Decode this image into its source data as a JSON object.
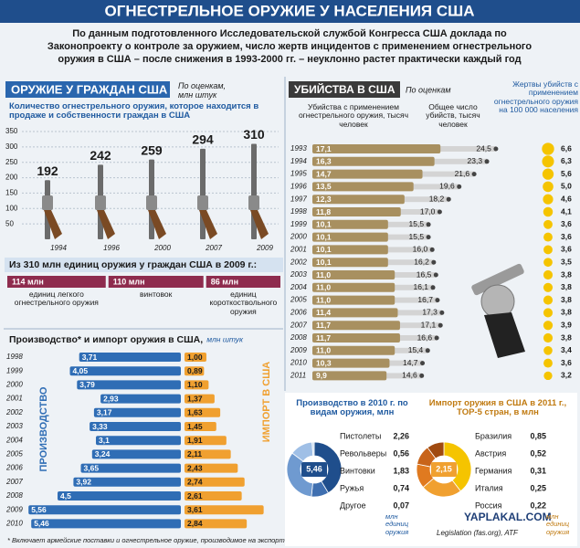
{
  "title": "ОГНЕСТРЕЛЬНОЕ ОРУЖИЕ У НАСЕЛЕНИЯ США",
  "intro": [
    "По данным подготовленного Исследовательской службой Конгресса США доклада по",
    "Законопроекту о контроле за оружием, число жертв инцидентов с применением огнестрельного",
    "оружия в США – после снижения в 1993-2000 гг. – неуклонно растет практически каждый год"
  ],
  "footnote": "* Включает армейские поставки и огнестрельное оружие, производимое на экспорт",
  "source": "Legislation (fas.org), ATF",
  "watermark": "YAPLAKAL.COM",
  "chart_data": [
    {
      "type": "bar",
      "title": "ОРУЖИЕ У ГРАЖДАН США",
      "note": "По оценкам, млн штук",
      "subtitle": "Количество огнестрельного оружия, которое находится в продаже и собственности граждан в США",
      "categories": [
        "1994",
        "1996",
        "2000",
        "2007",
        "2009"
      ],
      "values": [
        192,
        242,
        259,
        294,
        310
      ],
      "ylim": [
        0,
        350
      ],
      "yticks": [
        50,
        100,
        150,
        200,
        250,
        300,
        350
      ],
      "grid": true,
      "color": "#6b6b6b"
    },
    {
      "type": "segment",
      "title": "Из 310 млн единиц оружия у граждан США в 2009 г.:",
      "categories": [
        "единиц легкого огнестрельного оружия",
        "винтовок",
        "единиц короткоствольного оружия"
      ],
      "values": [
        114,
        110,
        86
      ],
      "value_labels": [
        "114 млн",
        "110 млн",
        "86 млн"
      ],
      "color": "#8e2c4e"
    },
    {
      "type": "paired-bar",
      "title": "Производство* и импорт оружия в США,",
      "unit": "млн штук",
      "categories": [
        "1998",
        "1999",
        "2000",
        "2001",
        "2002",
        "2003",
        "2004",
        "2005",
        "2006",
        "2007",
        "2008",
        "2009",
        "2010"
      ],
      "series": [
        {
          "name": "ПРОИЗВОДСТВО",
          "color": "#2f6db5",
          "values": [
            3.71,
            4.05,
            3.79,
            2.93,
            3.17,
            3.33,
            3.1,
            3.24,
            3.65,
            3.92,
            4.5,
            5.56,
            5.46
          ],
          "value_labels": [
            "3,71",
            "4,05",
            "3,79",
            "2,93",
            "3,17",
            "3,33",
            "3,1",
            "3,24",
            "3,65",
            "3,92",
            "4,5",
            "5,56",
            "5,46"
          ]
        },
        {
          "name": "ИМПОРТ В США",
          "color": "#f0a030",
          "values": [
            1.0,
            0.89,
            1.1,
            1.37,
            1.63,
            1.45,
            1.91,
            2.11,
            2.43,
            2.74,
            2.61,
            3.61,
            2.84
          ],
          "value_labels": [
            "1,00",
            "0,89",
            "1,10",
            "1,37",
            "1,63",
            "1,45",
            "1,91",
            "2,11",
            "2,43",
            "2,74",
            "2,61",
            "3,61",
            "2,84"
          ]
        }
      ]
    },
    {
      "type": "bullet-rows",
      "title": "УБИЙСТВА В США",
      "note": "По оценкам",
      "categories": [
        "1993",
        "1994",
        "1995",
        "1996",
        "1997",
        "1998",
        "1999",
        "2000",
        "2001",
        "2002",
        "2003",
        "2004",
        "2005",
        "2006",
        "2007",
        "2008",
        "2009",
        "2010",
        "2011"
      ],
      "series": [
        {
          "name": "Убийства с применением огнестрельного оружия, тысяч человек",
          "color": "#a89060",
          "values": [
            17.1,
            16.3,
            14.7,
            13.5,
            12.3,
            11.8,
            10.1,
            10.1,
            10.1,
            10.1,
            11.0,
            11.0,
            11.0,
            11.4,
            11.7,
            11.7,
            11.0,
            10.3,
            9.9
          ],
          "value_labels": [
            "17,1",
            "16,3",
            "14,7",
            "13,5",
            "12,3",
            "11,8",
            "10,1",
            "10,1",
            "10,1",
            "10,1",
            "11,0",
            "11,0",
            "11,0",
            "11,4",
            "11,7",
            "11,7",
            "11,0",
            "10,3",
            "9,9"
          ]
        },
        {
          "name": "Общее число убийств, тысяч человек",
          "color": "#d4d4d4",
          "values": [
            24.5,
            23.3,
            21.6,
            19.6,
            18.2,
            17.0,
            15.5,
            15.5,
            16.0,
            16.2,
            16.5,
            16.1,
            16.7,
            17.3,
            17.1,
            16.6,
            15.4,
            14.7,
            14.6
          ],
          "value_labels": [
            "24,5",
            "23,3",
            "21,6",
            "19,6",
            "18,2",
            "17,0",
            "15,5",
            "15,5",
            "16,0",
            "16,2",
            "16,5",
            "16,1",
            "16,7",
            "17,3",
            "17,1",
            "16,6",
            "15,4",
            "14,7",
            "14,6"
          ]
        },
        {
          "name": "Жертвы убийств с применением огнестрельного оружия на 100 000 населения",
          "color": "#f5c400",
          "values": [
            6.6,
            6.3,
            5.6,
            5.0,
            4.6,
            4.1,
            3.6,
            3.6,
            3.6,
            3.5,
            3.8,
            3.8,
            3.8,
            3.8,
            3.9,
            3.8,
            3.4,
            3.6,
            3.2
          ],
          "value_labels": [
            "6,6",
            "6,3",
            "5,6",
            "5,0",
            "4,6",
            "4,1",
            "3,6",
            "3,6",
            "3,6",
            "3,5",
            "3,8",
            "3,8",
            "3,8",
            "3,8",
            "3,9",
            "3,8",
            "3,4",
            "3,6",
            "3,2"
          ]
        }
      ]
    },
    {
      "type": "donut",
      "title": "Производство в 2010 г. по видам оружия, млн",
      "categories": [
        "Пистолеты",
        "Револьверы",
        "Винтовки",
        "Ружья",
        "Другое"
      ],
      "values": [
        2.26,
        0.56,
        1.83,
        0.74,
        0.07
      ],
      "value_labels": [
        "2,26",
        "0,56",
        "1,83",
        "0,74",
        "0,07"
      ],
      "colors": [
        "#1f4e8c",
        "#3f6fb0",
        "#6f9ad0",
        "#9fbfe6",
        "#c9dbf0"
      ],
      "total": 5.46,
      "total_label": "5,46",
      "unit": "млн единиц оружия"
    },
    {
      "type": "donut",
      "title": "Импорт оружия в США в 2011 г., ТОР-5 стран, в млн",
      "categories": [
        "Бразилия",
        "Австрия",
        "Германия",
        "Италия",
        "Россия"
      ],
      "values": [
        0.85,
        0.52,
        0.31,
        0.25,
        0.22
      ],
      "value_labels": [
        "0,85",
        "0,52",
        "0,31",
        "0,25",
        "0,22"
      ],
      "colors": [
        "#f5c400",
        "#f0a030",
        "#e07a20",
        "#c8641a",
        "#a04a10"
      ],
      "total": 2.15,
      "total_label": "2,15",
      "unit": "млн единиц оружия"
    }
  ]
}
